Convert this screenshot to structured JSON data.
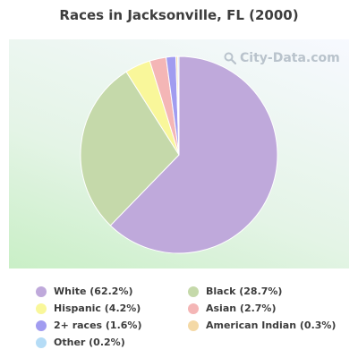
{
  "chart_data": {
    "type": "pie",
    "title": "Races in Jacksonville, FL (2000)",
    "slices": [
      {
        "label": "White (62.2%)",
        "name": "White",
        "value": 62.2,
        "color": "#bfa9db"
      },
      {
        "label": "Black (28.7%)",
        "name": "Black",
        "value": 28.7,
        "color": "#c5d9aa"
      },
      {
        "label": "Hispanic (4.2%)",
        "name": "Hispanic",
        "value": 4.2,
        "color": "#f9f79a"
      },
      {
        "label": "Asian (2.7%)",
        "name": "Asian",
        "value": 2.7,
        "color": "#f4b6b6"
      },
      {
        "label": "2+ races (1.6%)",
        "name": "2+ races",
        "value": 1.6,
        "color": "#a19cf0"
      },
      {
        "label": "American Indian (0.3%)",
        "name": "American Indian",
        "value": 0.3,
        "color": "#f4d9a6"
      },
      {
        "label": "Other (0.2%)",
        "name": "Other",
        "value": 0.2,
        "color": "#b5dcf6"
      }
    ],
    "legend_position": "bottom"
  },
  "watermark": {
    "text": "City-Data.com",
    "icon": "search-icon"
  }
}
